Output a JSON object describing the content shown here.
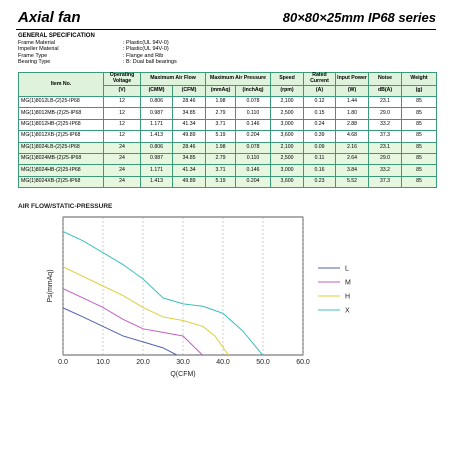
{
  "header": {
    "title": "Axial fan",
    "series": "80×80×25mm IP68 series"
  },
  "specification": {
    "title": "GENERAL SPECIFICATION",
    "items": [
      {
        "label": "Frame Material",
        "value": ": Plastic(UL 94V-0)"
      },
      {
        "label": "Impeller Material",
        "value": ": Plastic(UL 94V-0)"
      },
      {
        "label": "Frame Type",
        "value": ": Flange and  Rib"
      },
      {
        "label": "Bearing Type",
        "value": ": B: Dual ball bearings"
      }
    ]
  },
  "table": {
    "header": [
      "Item No.",
      "Operating Voltage",
      "Maximum Air Flow",
      "Maximum Air Pressure",
      "Speed",
      "Rated Current",
      "Input Power",
      "Noise",
      "Weight"
    ],
    "units": [
      "(V)",
      "(CMM)",
      "(CFM)",
      "(mmAq)",
      "(inchAq)",
      "(rpm)",
      "(A)",
      "(W)",
      "dB(A)",
      "(g)"
    ],
    "rows": [
      [
        "MG(1)8012LB-(2)25-IP68",
        "12",
        "0.806",
        "28.46",
        "1.98",
        "0.078",
        "2,100",
        "0.12",
        "1.44",
        "23.1",
        "85"
      ],
      [
        "MG(1)8012MB-(2)25-IP68",
        "12",
        "0.987",
        "34.85",
        "2.79",
        "0.110",
        "2,500",
        "0.15",
        "1.80",
        "29.0",
        "85"
      ],
      [
        "MG(1)8012HB-(2)25-IP68",
        "12",
        "1.171",
        "41.34",
        "3.71",
        "0.146",
        "3,000",
        "0.24",
        "2.88",
        "33.2",
        "85"
      ],
      [
        "MG(1)8012XB-(2)25-IP68",
        "12",
        "1.413",
        "49.89",
        "5.19",
        "0.204",
        "3,600",
        "0.39",
        "4.68",
        "37.3",
        "85"
      ],
      [
        "MG(1)8024LB-(2)25-IP68",
        "24",
        "0.806",
        "28.46",
        "1.98",
        "0.078",
        "2,100",
        "0.09",
        "2.16",
        "23.1",
        "85"
      ],
      [
        "MG(1)8024MB-(2)25-IP68",
        "24",
        "0.987",
        "34.85",
        "2.79",
        "0.110",
        "2,500",
        "0.11",
        "2.64",
        "29.0",
        "85"
      ],
      [
        "MG(1)8024HB-(2)25-IP68",
        "24",
        "1.171",
        "41.34",
        "3.71",
        "0.146",
        "3,000",
        "0.16",
        "3.84",
        "33.2",
        "85"
      ],
      [
        "MG(1)8024XB-(2)25-IP68",
        "24",
        "1.413",
        "49.89",
        "5.19",
        "0.204",
        "3,600",
        "0.23",
        "5.52",
        "37.3",
        "85"
      ]
    ]
  },
  "chart_data": {
    "type": "line",
    "title": "AIR FLOW/STATIC-PRESSURE",
    "x_label": "Q(CFM)",
    "y_label": "Ps(mmAq)",
    "xlim": [
      0,
      60
    ],
    "ylim": [
      0,
      5.8
    ],
    "xticks": [
      {
        "value": 0,
        "label": "0.0"
      },
      {
        "value": 10,
        "label": "10.0"
      },
      {
        "value": 20,
        "label": "20.0"
      },
      {
        "value": 30,
        "label": "30.0"
      },
      {
        "value": 40,
        "label": "40.0"
      },
      {
        "value": 50,
        "label": "50.0"
      },
      {
        "value": 60,
        "label": "60.0"
      }
    ],
    "grid": true,
    "series": [
      {
        "name": "L",
        "color": "#4f63b0",
        "x": [
          0,
          5,
          10,
          15,
          20,
          25,
          28.46
        ],
        "values": [
          1.98,
          1.6,
          1.2,
          0.8,
          0.55,
          0.3,
          0
        ]
      },
      {
        "name": "M",
        "color": "#c45ec4",
        "x": [
          0,
          5,
          10,
          15,
          20,
          25,
          30,
          34.85
        ],
        "values": [
          2.79,
          2.4,
          2.0,
          1.5,
          1.1,
          0.95,
          0.8,
          0
        ]
      },
      {
        "name": "H",
        "color": "#dccf3a",
        "x": [
          0,
          5,
          10,
          15,
          20,
          25,
          30,
          35,
          38,
          41.34
        ],
        "values": [
          3.71,
          3.3,
          2.9,
          2.5,
          2.0,
          1.6,
          1.45,
          1.2,
          0.8,
          0
        ]
      },
      {
        "name": "X",
        "color": "#3fbfbf",
        "x": [
          0,
          5,
          10,
          15,
          20,
          25,
          30,
          35,
          40,
          45,
          49.89
        ],
        "values": [
          5.19,
          4.8,
          4.3,
          3.8,
          3.2,
          2.4,
          2.15,
          2.05,
          1.75,
          1.0,
          0
        ]
      }
    ]
  }
}
